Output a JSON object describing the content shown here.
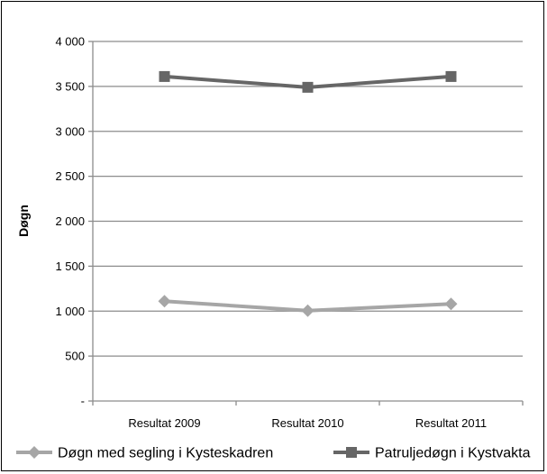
{
  "chart_data": {
    "type": "line",
    "categories": [
      "Resultat 2009",
      "Resultat 2010",
      "Resultat 2011"
    ],
    "ylabel": "Døgn",
    "ylim": [
      0,
      4000
    ],
    "yticks": [
      {
        "value": 0,
        "label": "-"
      },
      {
        "value": 500,
        "label": "500"
      },
      {
        "value": 1000,
        "label": "1 000"
      },
      {
        "value": 1500,
        "label": "1 500"
      },
      {
        "value": 2000,
        "label": "2 000"
      },
      {
        "value": 2500,
        "label": "2 500"
      },
      {
        "value": 3000,
        "label": "3 000"
      },
      {
        "value": 3500,
        "label": "3 500"
      },
      {
        "value": 4000,
        "label": "4 000"
      }
    ],
    "grid": true,
    "legend": "bottom",
    "series": [
      {
        "name": "Døgn med segling i Kysteskadren",
        "values": [
          1110,
          1005,
          1080
        ],
        "color": "#a6a6a6",
        "marker": "diamond"
      },
      {
        "name": "Patruljedøgn i Kystvakta",
        "values": [
          3610,
          3490,
          3610
        ],
        "color": "#666666",
        "marker": "square"
      }
    ]
  }
}
